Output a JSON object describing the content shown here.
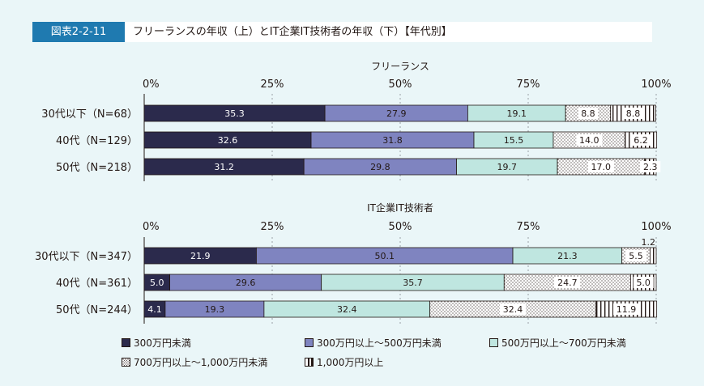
{
  "header": {
    "figure_label": "図表2-2-11",
    "title": "フリーランスの年収（上）とIT企業IT技術者の年収（下）【年代別】"
  },
  "colors": {
    "c1": "#2b2a4c",
    "c2": "#7f84c0",
    "c3": "#bfe6e0",
    "c4": "#ffffff",
    "c5": "#ffffff",
    "grid": "#9aa0a6",
    "border": "#231815"
  },
  "legend": {
    "items": [
      {
        "label": "300万円未満"
      },
      {
        "label": "300万円以上～500万円未満"
      },
      {
        "label": "500万円以上～700万円未満"
      },
      {
        "label": "700万円以上～1,000万円未満"
      },
      {
        "label": "1,000万円以上"
      }
    ]
  },
  "chart_data": [
    {
      "type": "bar",
      "stacked": true,
      "orientation": "horizontal",
      "title": "フリーランス",
      "ticks": [
        "0%",
        "25%",
        "50%",
        "75%",
        "100%"
      ],
      "xlim": [
        0,
        100
      ],
      "categories": [
        "30代以下（N=68）",
        "40代（N=129）",
        "50代（N=218）"
      ],
      "series": [
        {
          "name": "300万円未満",
          "values": [
            35.3,
            32.6,
            31.2
          ],
          "labels": [
            "35.3",
            "32.6",
            "31.2"
          ]
        },
        {
          "name": "300万円以上～500万円未満",
          "values": [
            27.9,
            31.8,
            29.8
          ],
          "labels": [
            "27.9",
            "31.8",
            "29.8"
          ]
        },
        {
          "name": "500万円以上～700万円未満",
          "values": [
            19.1,
            15.5,
            19.7
          ],
          "labels": [
            "19.1",
            "15.5",
            "19.7"
          ]
        },
        {
          "name": "700万円以上～1,000万円未満",
          "values": [
            8.8,
            14.0,
            17.0
          ],
          "labels": [
            "8.8",
            "14.0",
            "17.0"
          ]
        },
        {
          "name": "1,000万円以上",
          "values": [
            8.8,
            6.2,
            2.3
          ],
          "labels": [
            "8.8",
            "6.2",
            "2.3"
          ]
        }
      ]
    },
    {
      "type": "bar",
      "stacked": true,
      "orientation": "horizontal",
      "title": "IT企業IT技術者",
      "ticks": [
        "0%",
        "25%",
        "50%",
        "75%",
        "100%"
      ],
      "xlim": [
        0,
        100
      ],
      "categories": [
        "30代以下（N=347）",
        "40代（N=361）",
        "50代（N=244）"
      ],
      "series": [
        {
          "name": "300万円未満",
          "values": [
            21.9,
            5.0,
            4.1
          ],
          "labels": [
            "21.9",
            "5.0",
            "4.1"
          ]
        },
        {
          "name": "300万円以上～500万円未満",
          "values": [
            50.1,
            29.6,
            19.3
          ],
          "labels": [
            "50.1",
            "29.6",
            "19.3"
          ]
        },
        {
          "name": "500万円以上～700万円未満",
          "values": [
            21.3,
            35.7,
            32.4
          ],
          "labels": [
            "21.3",
            "35.7",
            "32.4"
          ]
        },
        {
          "name": "700万円以上～1,000万円未満",
          "values": [
            5.5,
            24.7,
            32.4
          ],
          "labels": [
            "5.5",
            "24.7",
            "32.4"
          ]
        },
        {
          "name": "1,000万円以上",
          "values": [
            1.2,
            5.0,
            11.9
          ],
          "labels": [
            "1.2",
            "5.0",
            "11.9"
          ]
        }
      ]
    }
  ]
}
